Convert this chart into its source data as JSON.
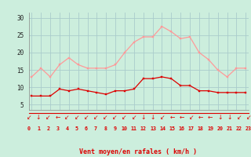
{
  "hours": [
    0,
    1,
    2,
    3,
    4,
    5,
    6,
    7,
    8,
    9,
    10,
    11,
    12,
    13,
    14,
    15,
    16,
    17,
    18,
    19,
    20,
    21,
    22,
    23
  ],
  "wind_avg": [
    7.5,
    7.5,
    7.5,
    9.5,
    9.0,
    9.5,
    9.0,
    8.5,
    8.0,
    9.0,
    9.0,
    9.5,
    12.5,
    12.5,
    13.0,
    12.5,
    10.5,
    10.5,
    9.0,
    9.0,
    8.5,
    8.5,
    8.5,
    8.5
  ],
  "wind_gust": [
    13.0,
    15.5,
    13.0,
    16.5,
    18.5,
    16.5,
    15.5,
    15.5,
    15.5,
    16.5,
    20.0,
    23.0,
    24.5,
    24.5,
    27.5,
    26.0,
    24.0,
    24.5,
    20.0,
    18.0,
    15.0,
    13.0,
    15.5,
    15.5
  ],
  "avg_color": "#dd0000",
  "gust_color": "#ff9999",
  "bg_color": "#cceedd",
  "grid_color": "#aacccc",
  "xlabel": "Vent moyen/en rafales ( km/h )",
  "yticks": [
    5,
    10,
    15,
    20,
    25,
    30
  ],
  "ylim": [
    3.5,
    31.5
  ],
  "xlim": [
    -0.3,
    23.3
  ],
  "arrow_symbols": [
    "↙",
    "↓",
    "↙",
    "←",
    "↙",
    "↙",
    "↙",
    "↙",
    "↙",
    "↙",
    "↙",
    "↙",
    "↓",
    "↓",
    "↙",
    "←",
    "←",
    "↙",
    "←",
    "←",
    "↓",
    "↓",
    "↙",
    "↙"
  ]
}
